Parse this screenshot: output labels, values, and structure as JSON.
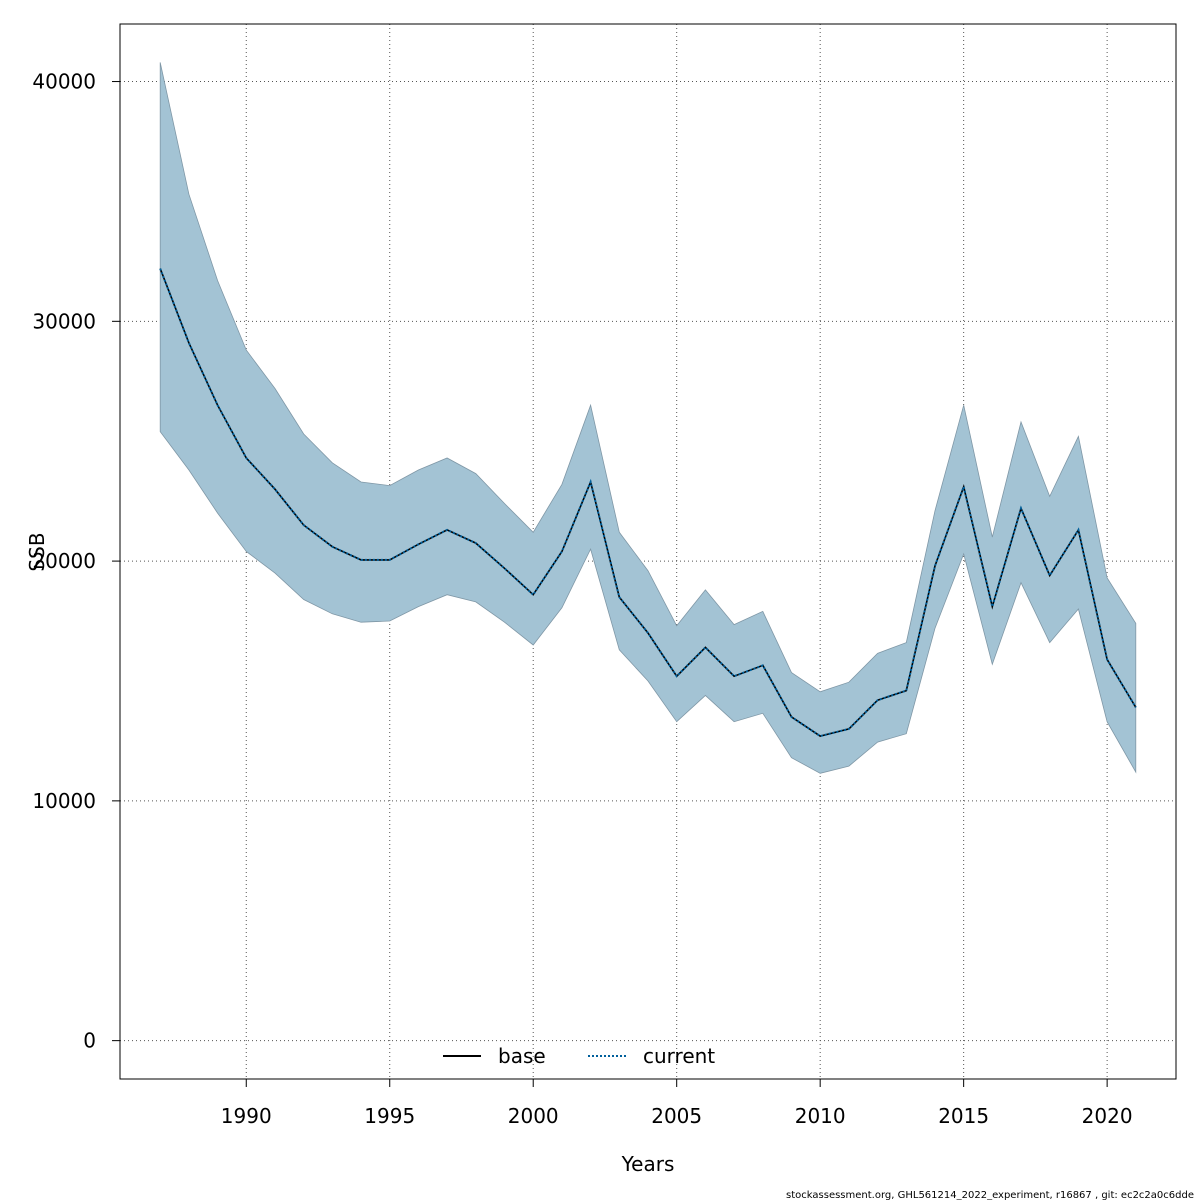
{
  "chart_data": {
    "type": "line",
    "xlabel": "Years",
    "ylabel": "SSB",
    "xlim": [
      1985.6,
      2022.4
    ],
    "ylim": [
      -1600,
      42400
    ],
    "x_ticks": [
      1990,
      1995,
      2000,
      2005,
      2010,
      2015,
      2020
    ],
    "y_ticks": [
      0,
      10000,
      20000,
      30000,
      40000
    ],
    "grid": true,
    "legend_position": "bottom-center",
    "x": [
      1987,
      1988,
      1989,
      1990,
      1991,
      1992,
      1993,
      1994,
      1995,
      1996,
      1997,
      1998,
      1999,
      2000,
      2001,
      2002,
      2003,
      2004,
      2005,
      2006,
      2007,
      2008,
      2009,
      2010,
      2011,
      2012,
      2013,
      2014,
      2015,
      2016,
      2017,
      2018,
      2019,
      2020,
      2021
    ],
    "series": [
      {
        "name": "base",
        "style": "solid",
        "color": "#000000",
        "values": [
          32200,
          29100,
          26500,
          24300,
          23000,
          21500,
          20600,
          20050,
          20050,
          20700,
          21300,
          20750,
          19700,
          18600,
          20400,
          23300,
          18500,
          17000,
          15200,
          16400,
          15200,
          15650,
          13500,
          12700,
          13000,
          14200,
          14600,
          19800,
          23100,
          18100,
          22200,
          19400,
          21300,
          15900,
          13900
        ]
      },
      {
        "name": "current",
        "style": "dotted",
        "color": "#00609C",
        "values": [
          32200,
          29100,
          26500,
          24300,
          23000,
          21500,
          20600,
          20050,
          20050,
          20700,
          21300,
          20750,
          19700,
          18600,
          20400,
          23300,
          18500,
          17000,
          15200,
          16400,
          15200,
          15650,
          13500,
          12700,
          13000,
          14200,
          14600,
          19800,
          23100,
          18100,
          22200,
          19400,
          21300,
          15900,
          13900
        ]
      }
    ],
    "confidence_band": {
      "color": "#A3C3D4",
      "lower": [
        25400,
        23800,
        22000,
        20400,
        19500,
        18400,
        17800,
        17450,
        17500,
        18100,
        18600,
        18300,
        17450,
        16500,
        18050,
        20500,
        16300,
        15000,
        13300,
        14400,
        13300,
        13650,
        11800,
        11150,
        11450,
        12450,
        12800,
        17200,
        20300,
        15700,
        19100,
        16600,
        18000,
        13300,
        11200
      ],
      "upper": [
        40800,
        35300,
        31700,
        28800,
        27200,
        25300,
        24100,
        23300,
        23150,
        23800,
        24300,
        23650,
        22400,
        21200,
        23200,
        26500,
        21200,
        19600,
        17300,
        18800,
        17350,
        17900,
        15350,
        14550,
        14950,
        16150,
        16600,
        22100,
        26500,
        21000,
        25800,
        22700,
        25200,
        19300,
        17400
      ]
    },
    "footer": "stockassessment.org, GHL561214_2022_experiment, r16867 , git: ec2c2a0c6dde"
  }
}
